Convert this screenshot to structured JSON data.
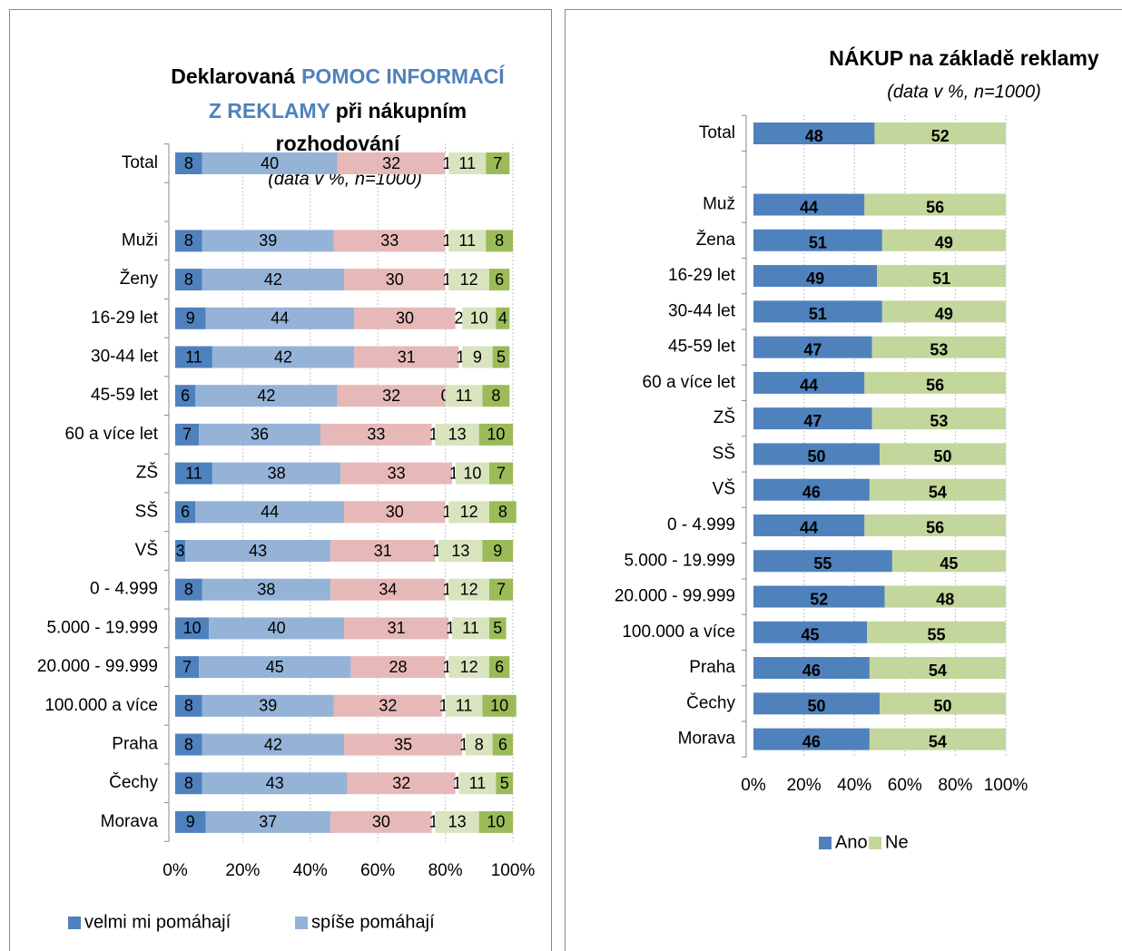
{
  "chart_data": [
    {
      "type": "bar",
      "orientation": "horizontal",
      "stacked": true,
      "title": [
        {
          "text": "Deklarovaná",
          "color": "#000000"
        },
        {
          "text": "POMOC INFORMACÍ",
          "color": "#4f81bd"
        },
        {
          "text": "Z REKLAMY",
          "color": "#4f81bd"
        },
        {
          "text": "při nákupním",
          "color": "#000000"
        },
        {
          "text": "rozhodování",
          "color": "#000000"
        }
      ],
      "subtitle": "(data v %, n=1000)",
      "categories": [
        "Total",
        null,
        "Muži",
        "Ženy",
        "16-29 let",
        "30-44 let",
        "45-59 let",
        "60 a více let",
        "ZŠ",
        "SŠ",
        "VŠ",
        "0 - 4.999",
        "5.000 - 19.999",
        "20.000 - 99.999",
        "100.000 a více",
        "Praha",
        "Čechy",
        "Morava"
      ],
      "series": [
        {
          "name": "velmi mi pomáhají",
          "color": "#4f81bd",
          "label_color": "#ffffff",
          "values": [
            8,
            null,
            8,
            8,
            9,
            11,
            6,
            7,
            11,
            6,
            3,
            8,
            10,
            7,
            8,
            8,
            8,
            9
          ]
        },
        {
          "name": "spíše pomáhají",
          "color": "#95b3d7",
          "label_color": "#000000",
          "values": [
            40,
            null,
            39,
            42,
            44,
            42,
            42,
            36,
            38,
            44,
            43,
            38,
            40,
            45,
            39,
            42,
            43,
            37
          ]
        },
        {
          "color": "#e6b9b8",
          "label_color": "#000000",
          "values": [
            32,
            null,
            33,
            30,
            30,
            31,
            32,
            33,
            33,
            30,
            31,
            34,
            31,
            28,
            32,
            35,
            32,
            30
          ]
        },
        {
          "color": "#ffffff",
          "label_color": "#000000",
          "values": [
            1,
            null,
            1,
            1,
            2,
            1,
            0,
            1,
            1,
            1,
            1,
            1,
            1,
            1,
            1,
            1,
            1,
            1
          ]
        },
        {
          "color": "#d7e4bd",
          "label_color": "#000000",
          "values": [
            11,
            null,
            11,
            12,
            10,
            9,
            11,
            13,
            10,
            12,
            13,
            12,
            11,
            12,
            11,
            8,
            11,
            13
          ]
        },
        {
          "color": "#9bbb59",
          "label_color": "#ffffff",
          "values": [
            7,
            null,
            8,
            6,
            4,
            5,
            8,
            10,
            7,
            8,
            9,
            7,
            5,
            6,
            10,
            6,
            5,
            10
          ]
        }
      ],
      "xlim": [
        0,
        100
      ],
      "xticks": [
        {
          "value": 0,
          "label": "0%"
        },
        {
          "value": 20,
          "label": "20%"
        },
        {
          "value": 40,
          "label": "40%"
        },
        {
          "value": 60,
          "label": "60%"
        },
        {
          "value": 80,
          "label": "80%"
        },
        {
          "value": 100,
          "label": "100%"
        }
      ],
      "grid": true,
      "legend": "bottom"
    },
    {
      "type": "bar",
      "orientation": "horizontal",
      "stacked": true,
      "title": [
        {
          "text": "NÁKUP na základě reklamy",
          "color": "#000000"
        }
      ],
      "subtitle": "(data v %, n=1000)",
      "categories": [
        "Total",
        null,
        "Muž",
        "Žena",
        "16-29 let",
        "30-44 let",
        "45-59 let",
        "60 a více let",
        "ZŠ",
        "SŠ",
        "VŠ",
        "0 - 4.999",
        "5.000 - 19.999",
        "20.000 - 99.999",
        "100.000 a více",
        "Praha",
        "Čechy",
        "Morava"
      ],
      "series": [
        {
          "name": "Ano",
          "color": "#4f81bd",
          "label_color": "#ffffff",
          "values": [
            48,
            null,
            44,
            51,
            49,
            51,
            47,
            44,
            47,
            50,
            46,
            44,
            55,
            52,
            45,
            46,
            50,
            46
          ]
        },
        {
          "name": "Ne",
          "color": "#c3d69b",
          "label_color": "#000000",
          "values": [
            52,
            null,
            56,
            49,
            51,
            49,
            53,
            56,
            53,
            50,
            54,
            56,
            45,
            48,
            55,
            54,
            50,
            54
          ]
        }
      ],
      "xlim": [
        0,
        100
      ],
      "xticks": [
        {
          "value": 0,
          "label": "0%"
        },
        {
          "value": 20,
          "label": "20%"
        },
        {
          "value": 40,
          "label": "40%"
        },
        {
          "value": 60,
          "label": "60%"
        },
        {
          "value": 80,
          "label": "80%"
        },
        {
          "value": 100,
          "label": "100%"
        }
      ],
      "grid": true,
      "legend": "bottom"
    }
  ]
}
